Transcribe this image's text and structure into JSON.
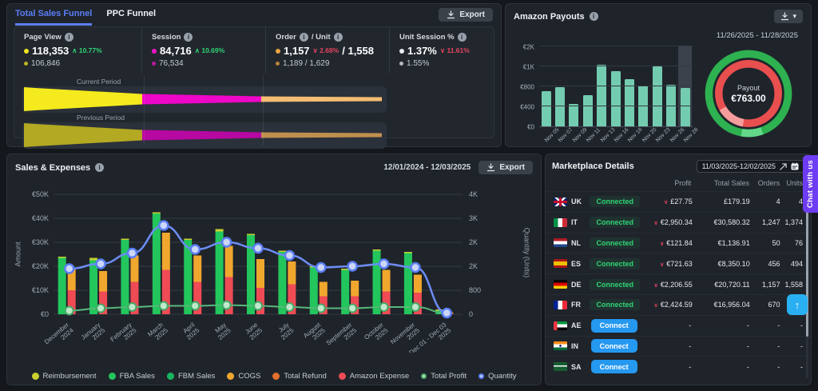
{
  "page": {
    "chat_label": "Chat with us",
    "scroll_top_icon": "↑"
  },
  "funnel_panel": {
    "tabs": [
      {
        "label": "Total Sales Funnel",
        "active": true
      },
      {
        "label": "PPC Funnel",
        "active": false
      }
    ],
    "export_label": "Export",
    "metrics": [
      {
        "label_parts": [
          "Page View"
        ],
        "dot_color": "#f2e31e",
        "current": "118,353",
        "delta": "10.77%",
        "direction": "up",
        "previous": "106,846"
      },
      {
        "label_parts": [
          "Session"
        ],
        "dot_color": "#ee14c6",
        "current": "84,716",
        "delta": "10.69%",
        "direction": "up",
        "previous": "76,534"
      },
      {
        "label_parts": [
          "Order",
          "/ Unit"
        ],
        "dot_color": "#eba53f",
        "current": "1,157",
        "delta": "2.68%",
        "direction": "down",
        "current_extra": "/ 1,558",
        "previous": "1,189 / 1,629"
      },
      {
        "label_parts": [
          "Unit Session %"
        ],
        "dot_color": "#e8ecef",
        "current": "1.37%",
        "delta": "11.61%",
        "direction": "down",
        "previous": "1.55%"
      }
    ],
    "current_period_label": "Current Period",
    "previous_period_label": "Previous Period",
    "funnel_colors_current": [
      "#f4ea1d",
      "#ee06c9",
      "#f4bd73"
    ],
    "funnel_colors_previous": [
      "#b3a922",
      "#b708a2",
      "#bf8f4d"
    ]
  },
  "payouts_panel": {
    "title": "Amazon Payouts",
    "date_range": "11/26/2025 - 11/28/2025",
    "donut_label": "Payout",
    "donut_value": "€763.00"
  },
  "sales_panel": {
    "title": "Sales & Expenses",
    "date_range": "12/01/2024 - 12/03/2025",
    "export_label": "Export",
    "ylabel_left": "Amount",
    "ylabel_right": "Quantity (Units)",
    "legend": [
      {
        "label": "Reimbursement",
        "color": "#c9d02f",
        "ring": false
      },
      {
        "label": "FBA Sales",
        "color": "#23c65c",
        "ring": false
      },
      {
        "label": "FBM Sales",
        "color": "#18b561",
        "ring": false
      },
      {
        "label": "COGS",
        "color": "#f0a72e",
        "ring": false
      },
      {
        "label": "Total Refund",
        "color": "#e2702c",
        "ring": false
      },
      {
        "label": "Amazon Expense",
        "color": "#ef4b55",
        "ring": false
      },
      {
        "label": "Total Profit",
        "color": "#4caf6d",
        "ring": true,
        "fill": "#b9e8c6"
      },
      {
        "label": "Quantity",
        "color": "#5b7ef5",
        "ring": true,
        "fill": "#c6d2f8"
      }
    ]
  },
  "marketplace_panel": {
    "title": "Marketplace Details",
    "date_value": "11/03/2025-12/02/2025",
    "headers": [
      "Profit",
      "Total Sales",
      "Orders",
      "Units"
    ],
    "rows": [
      {
        "code": "UK",
        "status": "Connected",
        "profit": "£27.75",
        "total_sales": "£179.19",
        "orders": "4",
        "units": "4"
      },
      {
        "code": "IT",
        "status": "Connected",
        "profit": "€2,950.34",
        "total_sales": "€30,580.32",
        "orders": "1,247",
        "units": "1,374"
      },
      {
        "code": "NL",
        "status": "Connected",
        "profit": "€121.84",
        "total_sales": "€1,136.91",
        "orders": "50",
        "units": "76"
      },
      {
        "code": "ES",
        "status": "Connected",
        "profit": "€721.63",
        "total_sales": "€8,350.10",
        "orders": "456",
        "units": "494"
      },
      {
        "code": "DE",
        "status": "Connected",
        "profit": "€2,206.55",
        "total_sales": "€20,720.11",
        "orders": "1,157",
        "units": "1,558"
      },
      {
        "code": "FR",
        "status": "Connected",
        "profit": "€2,424.59",
        "total_sales": "€16,956.04",
        "orders": "670",
        "units": ""
      },
      {
        "code": "AE",
        "status": "Connect",
        "profit": "-",
        "total_sales": "-",
        "orders": "-",
        "units": "-"
      },
      {
        "code": "IN",
        "status": "Connect",
        "profit": "-",
        "total_sales": "-",
        "orders": "-",
        "units": "-"
      },
      {
        "code": "SA",
        "status": "Connect",
        "profit": "-",
        "total_sales": "-",
        "orders": "-",
        "units": "-"
      }
    ]
  },
  "chart_data": [
    {
      "type": "funnel",
      "title": "Total Sales Funnel",
      "periods": [
        {
          "name": "Current Period",
          "stages": [
            {
              "label": "Page View",
              "value": 118353
            },
            {
              "label": "Session",
              "value": 84716
            },
            {
              "label": "Order / Unit",
              "value": "1,157 / 1,558"
            },
            {
              "label": "Unit Session %",
              "value": "1.37%"
            }
          ]
        },
        {
          "name": "Previous Period",
          "stages": [
            {
              "label": "Page View",
              "value": 106846
            },
            {
              "label": "Session",
              "value": 76534
            },
            {
              "label": "Order / Unit",
              "value": "1,189 / 1,629"
            },
            {
              "label": "Unit Session %",
              "value": "1.55%"
            }
          ]
        }
      ]
    },
    {
      "type": "bar",
      "title": "Amazon Payouts",
      "categories": [
        "Nov 05",
        "Nov 07",
        "Nov 09",
        "Nov 11",
        "Nov 13",
        "Nov 16",
        "Nov 18",
        "Nov 20",
        "Nov 23",
        "Nov 26",
        "Nov 28"
      ],
      "values": [
        700,
        780,
        450,
        630,
        1100,
        950,
        870,
        810,
        1010,
        820,
        770
      ],
      "ytick_labels": [
        "€0",
        "€400",
        "€800",
        "€1K",
        "€2K"
      ],
      "ytick_values": [
        0,
        400,
        800,
        1000,
        2000
      ],
      "bar_color": "#74ccb0",
      "highlight_last": true
    },
    {
      "type": "pie",
      "title": "Payout",
      "center_label": "Payout",
      "center_value": "€763.00",
      "rings": [
        {
          "name": "outer",
          "segments": [
            {
              "color": "#2eb150",
              "fraction": 0.92
            },
            {
              "color": "#63d888",
              "fraction": 0.08
            }
          ]
        },
        {
          "name": "inner",
          "segments": [
            {
              "color": "#e94f4f",
              "fraction": 0.86
            },
            {
              "color": "#f59d9d",
              "fraction": 0.14
            }
          ]
        }
      ]
    },
    {
      "type": "bar",
      "subtype": "grouped-stacked-with-lines",
      "title": "Sales & Expenses",
      "categories": [
        "December 2024",
        "January 2025",
        "February 2025",
        "March 2025",
        "April 2025",
        "May 2025",
        "June 2025",
        "July 2025",
        "August 2025",
        "September 2025",
        "October 2025",
        "November 2025",
        "Dec 01 - Dec 03 2025"
      ],
      "series": [
        {
          "name": "FBA Sales",
          "type": "bar",
          "stack": "sales",
          "color": "#23c65c",
          "values": [
            23500,
            22500,
            31000,
            42000,
            31000,
            34500,
            33000,
            26000,
            19500,
            18500,
            26500,
            25500,
            1500
          ]
        },
        {
          "name": "Reimbursement",
          "type": "bar",
          "stack": "sales",
          "color": "#c9d02f",
          "values": [
            500,
            1000,
            500,
            500,
            500,
            1000,
            500,
            300,
            300,
            300,
            500,
            500,
            100
          ]
        },
        {
          "name": "Amazon Expense",
          "type": "bar",
          "stack": "expense",
          "color": "#ef4b55",
          "values": [
            10000,
            9500,
            13500,
            18500,
            13500,
            15500,
            11000,
            12500,
            7500,
            7500,
            9500,
            9000,
            400
          ]
        },
        {
          "name": "COGS",
          "type": "bar",
          "stack": "expense",
          "color": "#f0a72e",
          "values": [
            9500,
            8500,
            11000,
            15500,
            11000,
            13000,
            12000,
            9500,
            6000,
            6500,
            9000,
            7500,
            400
          ]
        },
        {
          "name": "Total Profit",
          "type": "line",
          "axis": "left",
          "color": "#57b87a",
          "marker_fill": "#bfe9cb",
          "values": [
            1500,
            2500,
            3000,
            3500,
            3500,
            3800,
            3500,
            3000,
            2500,
            2500,
            3000,
            3000,
            500
          ]
        },
        {
          "name": "Quantity",
          "type": "line",
          "axis": "right",
          "color": "#6d8df7",
          "marker_fill": "#ccd6f8",
          "values": [
            1520,
            1680,
            2040,
            2960,
            2160,
            2400,
            2200,
            1960,
            1560,
            1600,
            1680,
            1560,
            40
          ]
        }
      ],
      "ylim_left": [
        0,
        50000
      ],
      "yticks_left": [
        "€50K",
        "€40K",
        "€30K",
        "€20K",
        "€10K",
        "€0"
      ],
      "ylim_right": [
        0,
        4000
      ],
      "yticks_right": [
        "4K",
        "3K",
        "2K",
        "2K",
        "800",
        "0"
      ],
      "xlabel": "",
      "ylabel_left": "Amount",
      "ylabel_right": "Quantity (Units)",
      "legend_position": "bottom",
      "grid": true
    }
  ]
}
